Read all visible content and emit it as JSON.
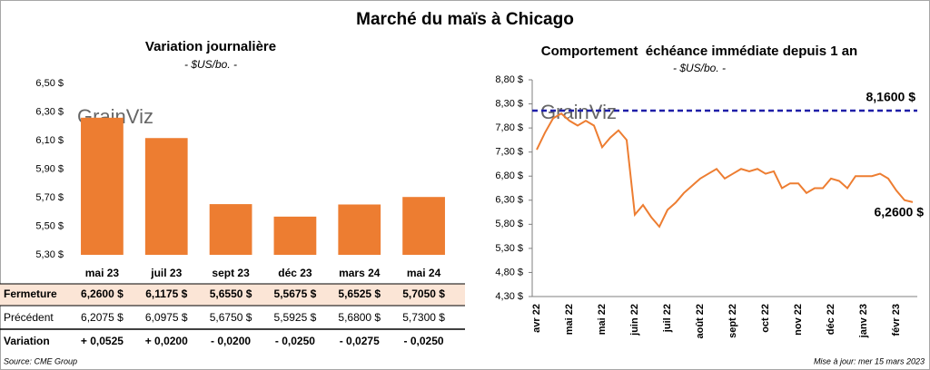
{
  "title": "Marché du maïs à Chicago",
  "watermark": "GrainViz",
  "chart_data": [
    {
      "type": "bar",
      "title": "Variation journalière",
      "subtitle": "- $US/bo. -",
      "categories": [
        "mai 23",
        "juil 23",
        "sept 23",
        "déc 23",
        "mars 24",
        "mai 24"
      ],
      "values": [
        6.26,
        6.1175,
        5.655,
        5.5675,
        5.6525,
        5.705
      ],
      "color": "#ed7d31",
      "ylim": [
        5.3,
        6.5
      ],
      "yticks": [
        {
          "value": 5.3,
          "label": "5,30 $"
        },
        {
          "value": 5.5,
          "label": "5,50 $"
        },
        {
          "value": 5.7,
          "label": "5,70 $"
        },
        {
          "value": 5.9,
          "label": "5,90 $"
        },
        {
          "value": 6.1,
          "label": "6,10 $"
        },
        {
          "value": 6.3,
          "label": "6,30 $"
        },
        {
          "value": 6.5,
          "label": "6,50 $"
        }
      ]
    },
    {
      "type": "line",
      "title": "Comportement  échéance immédiate depuis 1 an",
      "subtitle": "- $US/bo. -",
      "categories": [
        "avr 22",
        null,
        null,
        null,
        "mai 22",
        null,
        null,
        null,
        "mai 22",
        null,
        null,
        null,
        "juin 22",
        null,
        null,
        null,
        "juil 22",
        null,
        null,
        null,
        "août 22",
        null,
        null,
        null,
        "sept 22",
        null,
        null,
        null,
        "oct 22",
        null,
        null,
        null,
        "nov 22",
        null,
        null,
        null,
        "déc 22",
        null,
        null,
        null,
        "janv 23",
        null,
        null,
        null,
        "févr 23",
        null,
        null
      ],
      "series": [
        {
          "color": "#ed7d31",
          "values": [
            7.35,
            7.7,
            8.0,
            8.1,
            7.95,
            7.85,
            7.95,
            7.85,
            7.4,
            7.6,
            7.75,
            7.55,
            6.0,
            6.2,
            5.95,
            5.75,
            6.1,
            6.25,
            6.45,
            6.6,
            6.75,
            6.85,
            6.95,
            6.75,
            6.85,
            6.95,
            6.9,
            6.95,
            6.85,
            6.9,
            6.55,
            6.65,
            6.65,
            6.45,
            6.55,
            6.55,
            6.75,
            6.7,
            6.55,
            6.8,
            6.8,
            6.8,
            6.85,
            6.75,
            6.5,
            6.3,
            6.26
          ],
          "value_labels": [
            null,
            null,
            null,
            null,
            null,
            null,
            null,
            null,
            null,
            null,
            null,
            null,
            null,
            null,
            null,
            null,
            null,
            null,
            null,
            null,
            null,
            null,
            null,
            null,
            null,
            null,
            null,
            null,
            null,
            null,
            null,
            null,
            null,
            null,
            null,
            null,
            null,
            null,
            null,
            null,
            null,
            null,
            null,
            null,
            null,
            null,
            "6,2600 $"
          ]
        }
      ],
      "hline": {
        "value": 8.16,
        "label": "8,1600 $",
        "color": "#1f1fa8"
      },
      "ylim": [
        4.3,
        8.8
      ],
      "yticks": [
        {
          "value": 4.3,
          "label": "4,30 $"
        },
        {
          "value": 4.8,
          "label": "4,80 $"
        },
        {
          "value": 5.3,
          "label": "5,30 $"
        },
        {
          "value": 5.8,
          "label": "5,80 $"
        },
        {
          "value": 6.3,
          "label": "6,30 $"
        },
        {
          "value": 6.8,
          "label": "6,80 $"
        },
        {
          "value": 7.3,
          "label": "7,30 $"
        },
        {
          "value": 7.8,
          "label": "7,80 $"
        },
        {
          "value": 8.3,
          "label": "8,30 $"
        },
        {
          "value": 8.8,
          "label": "8,80 $"
        }
      ]
    }
  ],
  "table": {
    "rows": [
      {
        "label": "Fermeture",
        "cells": [
          "6,2600 $",
          "6,1175 $",
          "5,6550 $",
          "5,5675 $",
          "5,6525 $",
          "5,7050 $"
        ]
      },
      {
        "label": "Précédent",
        "cells": [
          "6,2075 $",
          "6,0975 $",
          "5,6750 $",
          "5,5925 $",
          "5,6800 $",
          "5,7300 $"
        ]
      },
      {
        "label": "Variation",
        "cells": [
          "+ 0,0525",
          "+ 0,0200",
          "- 0,0200",
          "- 0,0250",
          "- 0,0275",
          "- 0,0250"
        ]
      }
    ]
  },
  "source": "Source: CME Group",
  "updated": "Mise à jour: mer 15 mars 2023"
}
